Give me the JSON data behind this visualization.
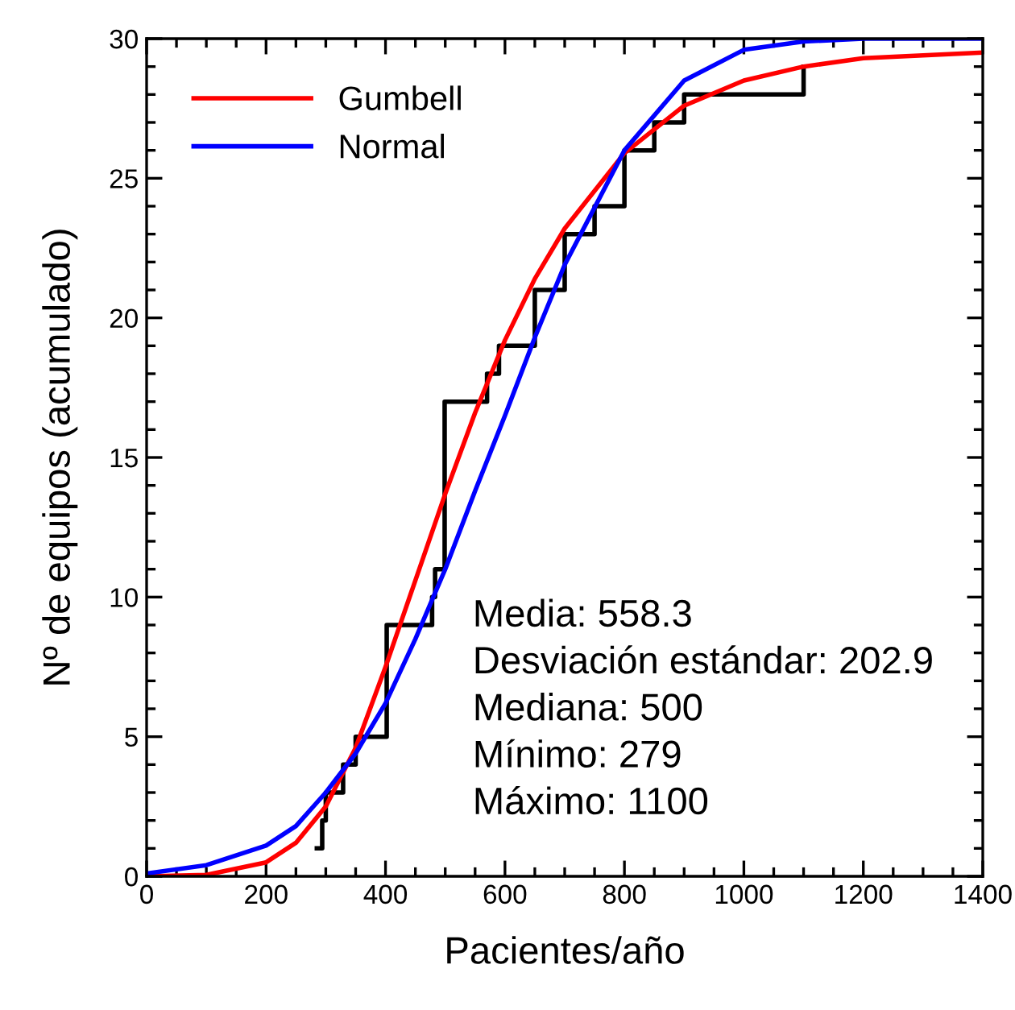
{
  "chart_data": {
    "type": "line",
    "xlabel": "Pacientes/año",
    "ylabel": "Nº de equipos (acumulado)",
    "xlim": [
      0,
      1400
    ],
    "ylim": [
      0,
      30
    ],
    "xticks": [
      0,
      {
        "value": 50,
        "label": null
      },
      {
        "value": 100,
        "label": null
      },
      {
        "value": 150,
        "label": null
      },
      200,
      {
        "value": 250,
        "label": null
      },
      {
        "value": 300,
        "label": null
      },
      {
        "value": 350,
        "label": null
      },
      400,
      {
        "value": 450,
        "label": null
      },
      {
        "value": 500,
        "label": null
      },
      {
        "value": 550,
        "label": null
      },
      600,
      {
        "value": 650,
        "label": null
      },
      {
        "value": 700,
        "label": null
      },
      {
        "value": 750,
        "label": null
      },
      800,
      {
        "value": 850,
        "label": null
      },
      {
        "value": 900,
        "label": null
      },
      {
        "value": 950,
        "label": null
      },
      1000,
      {
        "value": 1050,
        "label": null
      },
      {
        "value": 1100,
        "label": null
      },
      {
        "value": 1150,
        "label": null
      },
      1200,
      {
        "value": 1250,
        "label": null
      },
      {
        "value": 1300,
        "label": null
      },
      {
        "value": 1350,
        "label": null
      },
      1400
    ],
    "yticks": [
      0,
      {
        "value": 1,
        "label": null
      },
      {
        "value": 2,
        "label": null
      },
      {
        "value": 3,
        "label": null
      },
      {
        "value": 4,
        "label": null
      },
      5,
      {
        "value": 6,
        "label": null
      },
      {
        "value": 7,
        "label": null
      },
      {
        "value": 8,
        "label": null
      },
      {
        "value": 9,
        "label": null
      },
      10,
      {
        "value": 11,
        "label": null
      },
      {
        "value": 12,
        "label": null
      },
      {
        "value": 13,
        "label": null
      },
      {
        "value": 14,
        "label": null
      },
      15,
      {
        "value": 16,
        "label": null
      },
      {
        "value": 17,
        "label": null
      },
      {
        "value": 18,
        "label": null
      },
      {
        "value": 19,
        "label": null
      },
      20,
      {
        "value": 21,
        "label": null
      },
      {
        "value": 22,
        "label": null
      },
      {
        "value": 23,
        "label": null
      },
      {
        "value": 24,
        "label": null
      },
      25,
      {
        "value": 26,
        "label": null
      },
      {
        "value": 27,
        "label": null
      },
      {
        "value": 28,
        "label": null
      },
      {
        "value": 29,
        "label": null
      },
      30
    ],
    "grid": false,
    "legend": "top left",
    "series": [
      {
        "type": "step",
        "color": "#000000",
        "x": [
          285,
          294,
          300,
          329,
          350,
          402,
          478,
          483,
          499,
          570,
          590,
          650,
          700,
          750,
          800,
          850,
          900,
          1100
        ],
        "values": [
          1,
          2,
          3,
          4,
          5,
          9,
          10,
          11,
          17,
          18,
          19,
          21,
          23,
          24,
          26,
          27,
          28,
          29
        ]
      },
      {
        "name": "Gumbell",
        "color": "#ff0000",
        "x": [
          0,
          100,
          200,
          250,
          300,
          350,
          400,
          450,
          500,
          550,
          600,
          650,
          700,
          800,
          900,
          1000,
          1100,
          1200,
          1300,
          1400
        ],
        "values": [
          0,
          0.05,
          0.5,
          1.2,
          2.5,
          4.6,
          7.5,
          10.6,
          13.7,
          16.6,
          19.2,
          21.4,
          23.2,
          25.9,
          27.6,
          28.5,
          29.0,
          29.3,
          29.4,
          29.5
        ]
      },
      {
        "name": "Normal",
        "color": "#0000ff",
        "x": [
          0,
          100,
          200,
          250,
          300,
          350,
          400,
          450,
          500,
          550,
          600,
          650,
          700,
          800,
          900,
          1000,
          1100,
          1200,
          1300,
          1400
        ],
        "values": [
          0.1,
          0.4,
          1.1,
          1.8,
          3.0,
          4.4,
          6.2,
          8.5,
          11.0,
          13.8,
          16.5,
          19.3,
          21.9,
          26.0,
          28.5,
          29.6,
          29.9,
          30,
          30,
          30
        ]
      }
    ],
    "annotations": [
      "Media: 558.3",
      "Desviación estándar: 202.9",
      "Mediana: 500",
      "Mínimo: 279",
      "Máximo: 1100"
    ]
  }
}
